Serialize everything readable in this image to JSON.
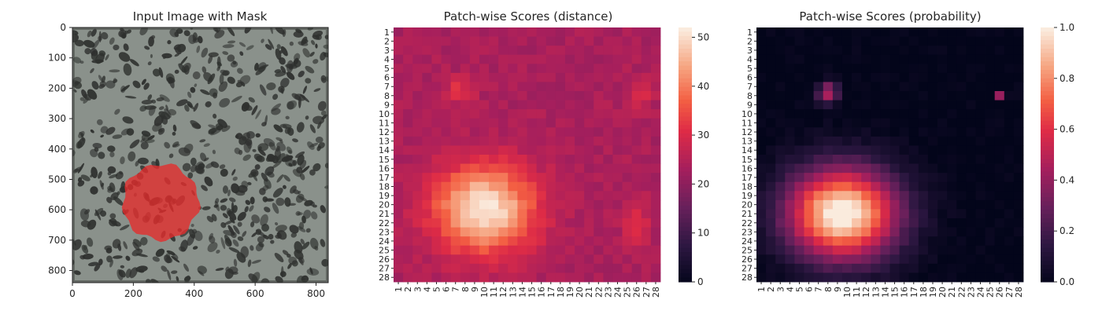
{
  "chart_data": [
    {
      "type": "image",
      "title": "Input Image with Mask",
      "xlim": [
        0,
        840
      ],
      "ylim": [
        840,
        0
      ],
      "xticks": [
        0,
        200,
        400,
        600,
        800
      ],
      "yticks": [
        0,
        100,
        200,
        300,
        400,
        500,
        600,
        700,
        800
      ],
      "xtick_labels": [
        "0",
        "200",
        "400",
        "600",
        "800"
      ],
      "ytick_labels": [
        "0",
        "100",
        "200",
        "300",
        "400",
        "500",
        "600",
        "700",
        "800"
      ],
      "mask": {
        "center": [
          290,
          575
        ],
        "radius": 125,
        "color": "#e52b2b"
      },
      "image_color": "#8a918b",
      "spot_color": "#2e302e"
    },
    {
      "type": "heatmap",
      "title": "Patch-wise Scores (distance)",
      "rows": 28,
      "cols": 28,
      "vmin": 0,
      "vmax": 52,
      "colorbar_ticks": [
        0,
        10,
        20,
        30,
        40,
        50
      ],
      "colorbar_labels": [
        "0",
        "10",
        "20",
        "30",
        "40",
        "50"
      ],
      "colormap": "rocket",
      "base_value": 24,
      "hotspots": [
        {
          "row": 20.5,
          "col": 10,
          "peak": 28,
          "rx": 5.5,
          "ry": 5
        },
        {
          "row": 7.5,
          "col": 7.5,
          "peak": 8,
          "rx": 1.5,
          "ry": 1.5
        },
        {
          "row": 8,
          "col": 26.5,
          "peak": 8,
          "rx": 1.2,
          "ry": 1.5
        },
        {
          "row": 22,
          "col": 26,
          "peak": 6,
          "rx": 1.5,
          "ry": 3
        }
      ]
    },
    {
      "type": "heatmap",
      "title": "Patch-wise Scores (probability)",
      "rows": 28,
      "cols": 28,
      "vmin": 0,
      "vmax": 1,
      "colorbar_ticks": [
        0.0,
        0.2,
        0.4,
        0.6,
        0.8,
        1.0
      ],
      "colorbar_labels": [
        "0.0",
        "0.2",
        "0.4",
        "0.6",
        "0.8",
        "1.0"
      ],
      "colormap": "rocket",
      "base_value": 0,
      "hotspots": [
        {
          "row": 21,
          "col": 9.5,
          "peak": 1.05,
          "rx": 6,
          "ry": 5.2
        },
        {
          "row": 7.7,
          "col": 8,
          "peak": 0.5,
          "rx": 1.1,
          "ry": 1.2
        },
        {
          "row": 8,
          "col": 26,
          "peak": 0.4,
          "rx": 0.5,
          "ry": 0.5
        }
      ]
    }
  ]
}
